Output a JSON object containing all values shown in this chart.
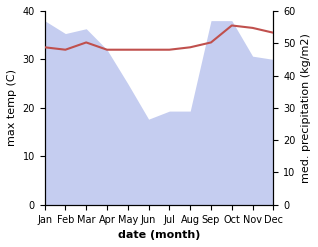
{
  "months": [
    1,
    2,
    3,
    4,
    5,
    6,
    7,
    8,
    9,
    10,
    11,
    12
  ],
  "month_labels": [
    "Jan",
    "Feb",
    "Mar",
    "Apr",
    "May",
    "Jun",
    "Jul",
    "Aug",
    "Sep",
    "Oct",
    "Nov",
    "Dec"
  ],
  "temp": [
    32.5,
    32.0,
    33.5,
    32.0,
    32.0,
    32.0,
    32.0,
    32.5,
    33.5,
    37.0,
    36.5,
    35.5
  ],
  "precip": [
    57.0,
    53.0,
    54.5,
    48.0,
    37.5,
    26.5,
    29.0,
    29.0,
    57.0,
    57.0,
    46.0,
    45.0
  ],
  "temp_color": "#c0504d",
  "precip_fill_color": "#c5cdf0",
  "temp_ylim": [
    0,
    40
  ],
  "precip_ylim": [
    0,
    60
  ],
  "xlabel": "date (month)",
  "ylabel_left": "max temp (C)",
  "ylabel_right": "med. precipitation (kg/m2)",
  "label_fontsize": 8,
  "tick_fontsize": 7
}
